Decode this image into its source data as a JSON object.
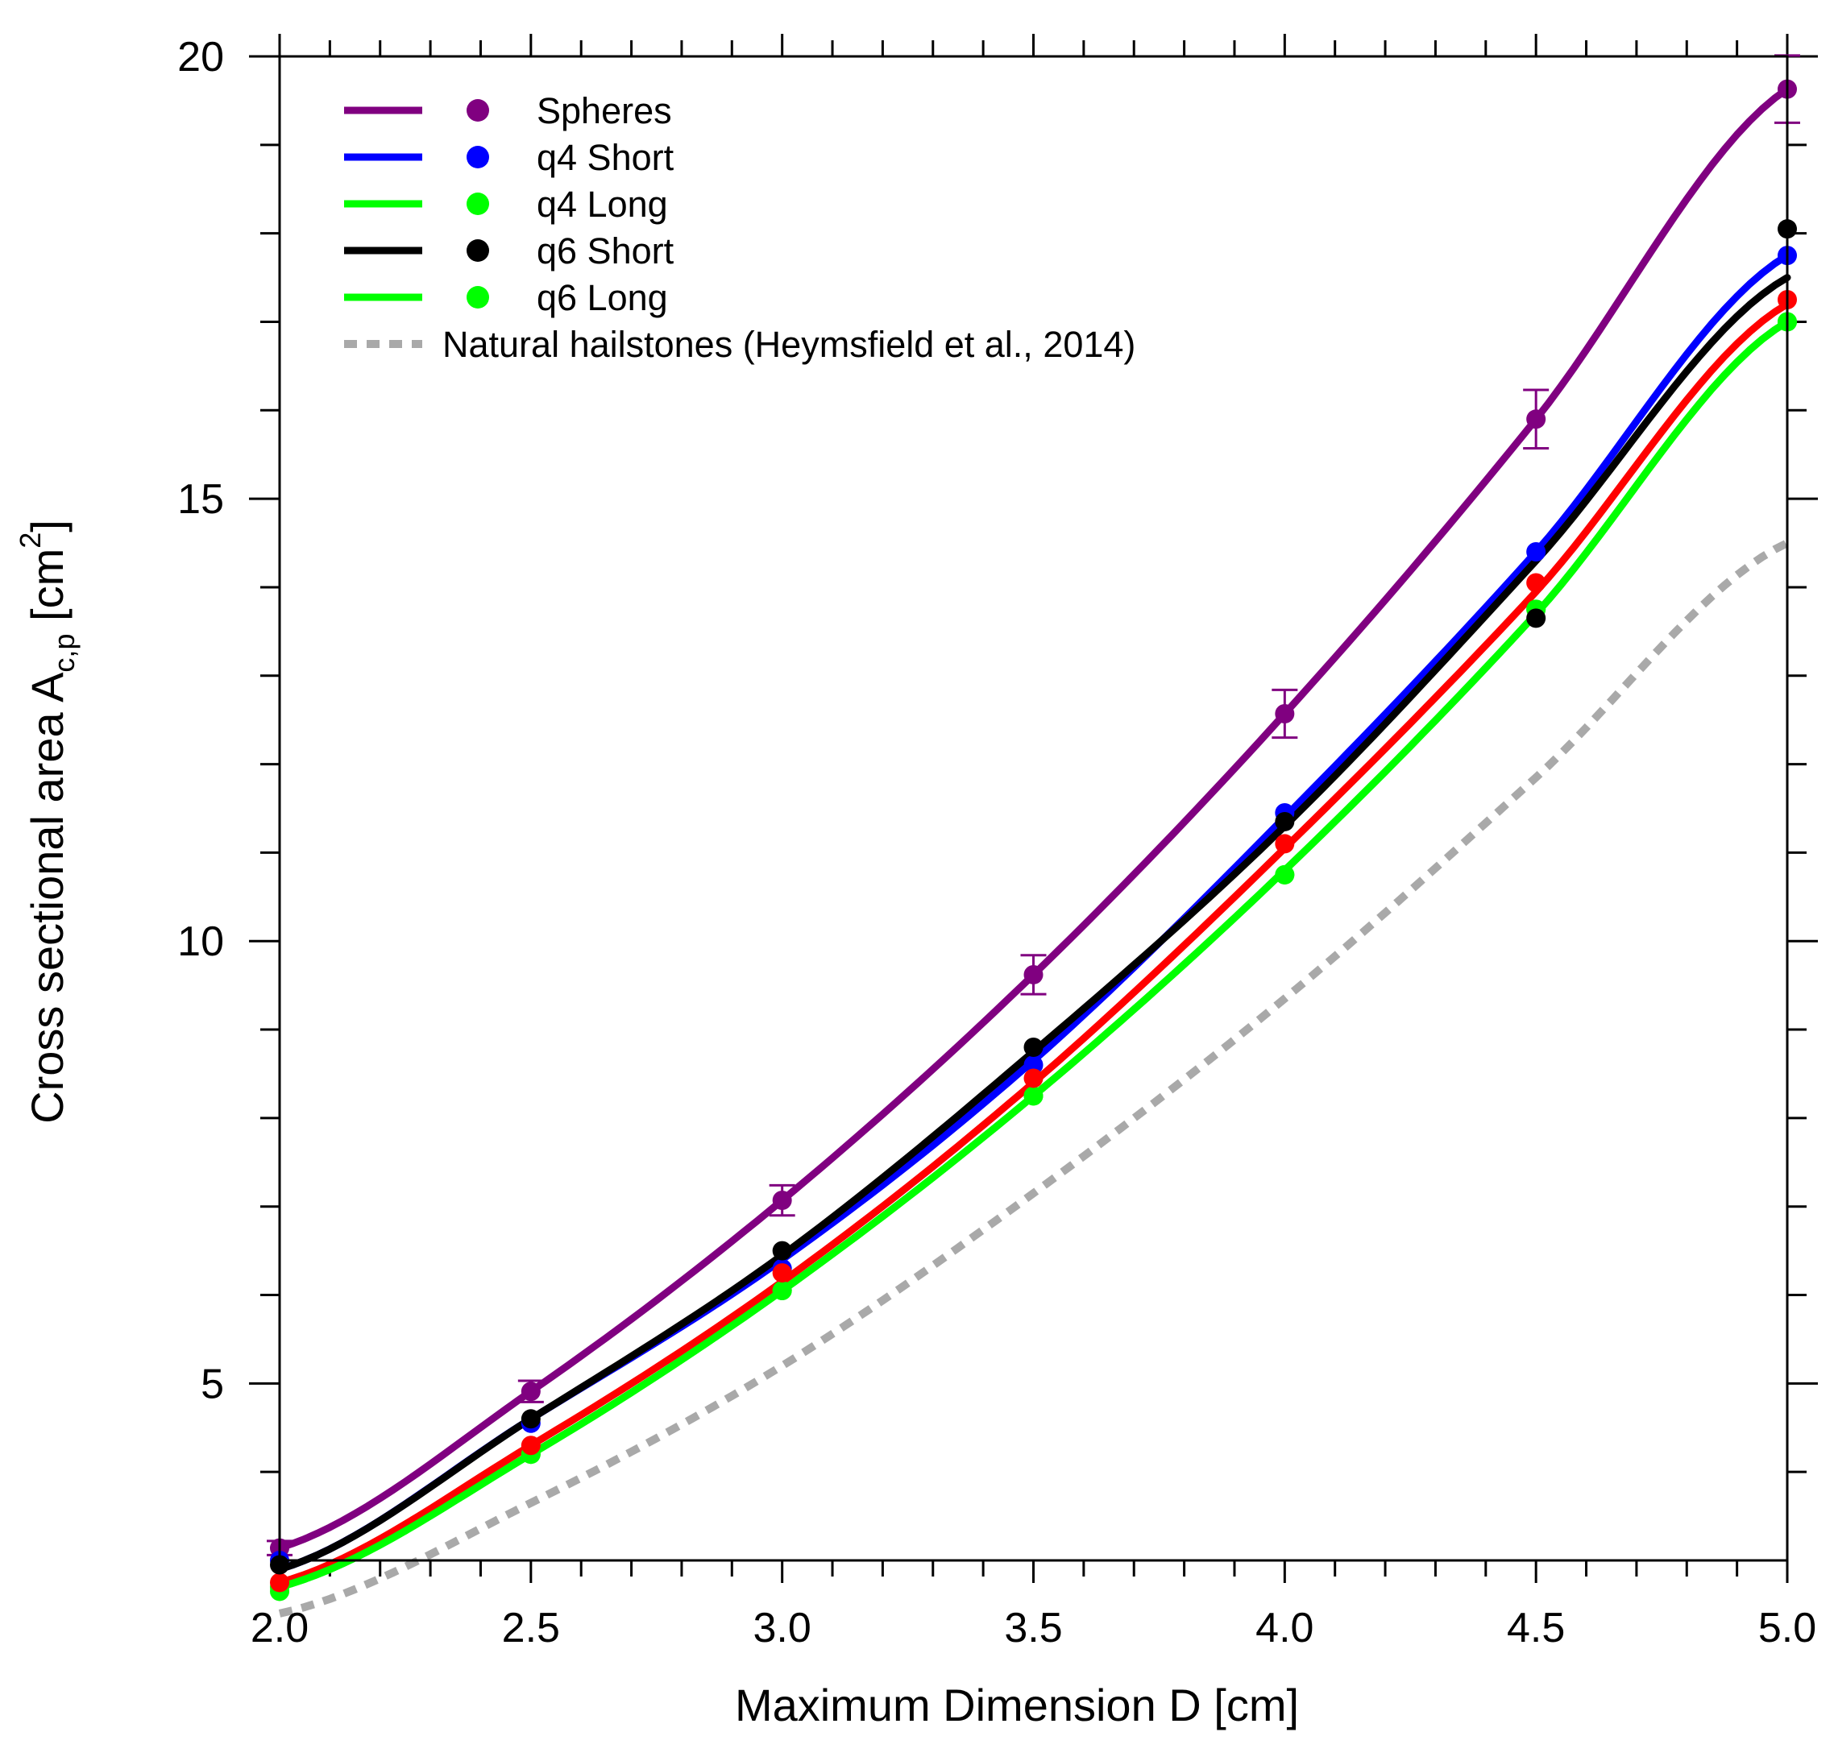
{
  "chart_data": {
    "type": "line",
    "title": "",
    "xlabel": "Maximum Dimension D [cm]",
    "ylabel": {
      "main": "Cross sectional area A",
      "subscript": "c,p",
      "unit_open": " [cm",
      "superscript": "2",
      "unit_close": "]"
    },
    "xlim": [
      2.0,
      5.0
    ],
    "ylim": [
      3.0,
      20.0
    ],
    "x_ticks": [
      "2.0",
      "2.5",
      "3.0",
      "3.5",
      "4.0",
      "4.5",
      "5.0"
    ],
    "y_ticks": [
      "5",
      "10",
      "15",
      "20"
    ],
    "grid": false,
    "legend_position": "top-left",
    "x": [
      2.0,
      2.5,
      3.0,
      3.5,
      4.0,
      4.5,
      5.0
    ],
    "series": [
      {
        "name": "Spheres",
        "color": "#800080",
        "line": [
          3.14,
          4.91,
          7.07,
          9.62,
          12.57,
          15.9,
          19.63
        ],
        "points": [
          3.14,
          4.91,
          7.07,
          9.62,
          12.57,
          15.9,
          19.63
        ],
        "errors": [
          0.08,
          0.12,
          0.17,
          0.22,
          0.27,
          0.33,
          0.38
        ]
      },
      {
        "name": "q4 Short",
        "color": "#0000ff",
        "line": [
          2.9,
          4.6,
          6.4,
          8.65,
          11.4,
          14.4,
          17.75
        ],
        "points": [
          3.0,
          4.55,
          6.3,
          8.6,
          11.45,
          14.4,
          17.75
        ]
      },
      {
        "name": "q4 Long",
        "color": "#00ff00",
        "line": [
          2.7,
          4.2,
          6.05,
          8.25,
          10.8,
          13.7,
          17.0
        ],
        "points": [
          2.7,
          4.2,
          6.05,
          8.25,
          10.75,
          13.75,
          17.0
        ]
      },
      {
        "name": "q6 Short",
        "color": "#000000",
        "line": [
          2.9,
          4.6,
          6.45,
          8.75,
          11.3,
          14.3,
          17.5
        ],
        "points": [
          2.95,
          4.6,
          6.5,
          8.8,
          11.35,
          13.65,
          18.05
        ]
      },
      {
        "name": "q6 Long",
        "color": "#00ff00",
        "line": [
          2.7,
          4.2,
          6.05,
          8.25,
          10.8,
          13.7,
          17.0
        ],
        "points": [
          2.65,
          4.2,
          6.05,
          8.25,
          10.75,
          13.75,
          17.0
        ]
      },
      {
        "name": "",
        "color": "#ff0000",
        "line": [
          2.75,
          4.3,
          6.15,
          8.4,
          11.05,
          13.95,
          17.2
        ],
        "points": [
          2.75,
          4.3,
          6.25,
          8.45,
          11.1,
          14.05,
          17.25
        ]
      },
      {
        "name": "Natural hailstones (Heymsfield et al., 2014)",
        "color": "#a9a9a9",
        "dashed": true,
        "line": [
          2.4,
          3.65,
          5.2,
          7.15,
          9.35,
          11.85,
          14.5
        ]
      }
    ]
  }
}
